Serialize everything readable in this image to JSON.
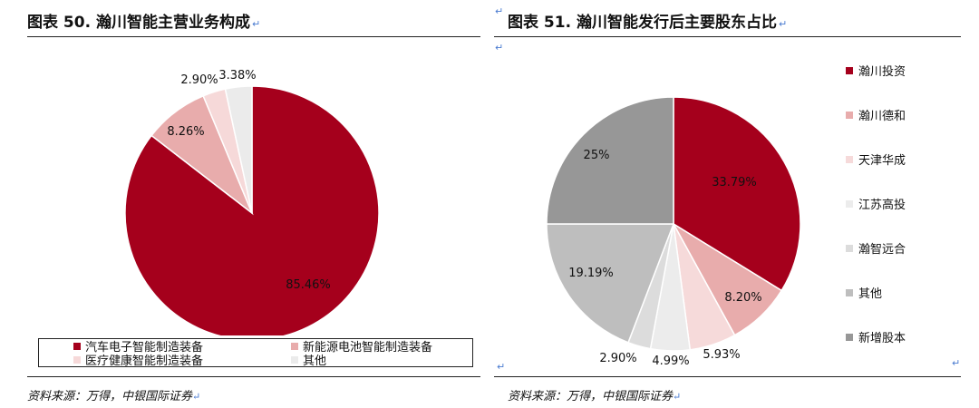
{
  "left": {
    "title": "图表 50. 瀚川智能主营业务构成",
    "source": "资料来源：万得，中银国际证券"
  },
  "right": {
    "title": "图表 51. 瀚川智能发行后主要股东占比",
    "source": "资料来源：万得，中银国际证券"
  },
  "return_mark": "↵",
  "chart_data": [
    {
      "type": "pie",
      "title": "图表 50. 瀚川智能主营业务构成",
      "start_angle_deg": 0,
      "direction": "clockwise",
      "legend_position": "bottom",
      "series": [
        {
          "name": "汽车电子智能制造装备",
          "value": 85.46,
          "label": "85.46%",
          "color": "#a5001c"
        },
        {
          "name": "新能源电池智能制造装备",
          "value": 8.26,
          "label": "8.26%",
          "color": "#e8acac"
        },
        {
          "name": "医疗健康智能制造装备",
          "value": 2.9,
          "label": "2.90%",
          "color": "#f6d9d9"
        },
        {
          "name": "其他",
          "value": 3.38,
          "label": "3.38%",
          "color": "#ebebeb"
        }
      ]
    },
    {
      "type": "pie",
      "title": "图表 51. 瀚川智能发行后主要股东占比",
      "start_angle_deg": 0,
      "direction": "clockwise",
      "legend_position": "right",
      "series": [
        {
          "name": "瀚川投资",
          "value": 33.79,
          "label": "33.79%",
          "color": "#a5001c"
        },
        {
          "name": "瀚川德和",
          "value": 8.2,
          "label": "8.20%",
          "color": "#e8acac"
        },
        {
          "name": "天津华成",
          "value": 5.93,
          "label": "5.93%",
          "color": "#f6dada"
        },
        {
          "name": "江苏高投",
          "value": 4.99,
          "label": "4.99%",
          "color": "#ececec"
        },
        {
          "name": "瀚智远合",
          "value": 2.9,
          "label": "2.90%",
          "color": "#dcdcdc"
        },
        {
          "name": "其他",
          "value": 19.19,
          "label": "19.19%",
          "color": "#bebebe"
        },
        {
          "name": "新增股本",
          "value": 25,
          "label": "25%",
          "color": "#979797"
        }
      ]
    }
  ]
}
